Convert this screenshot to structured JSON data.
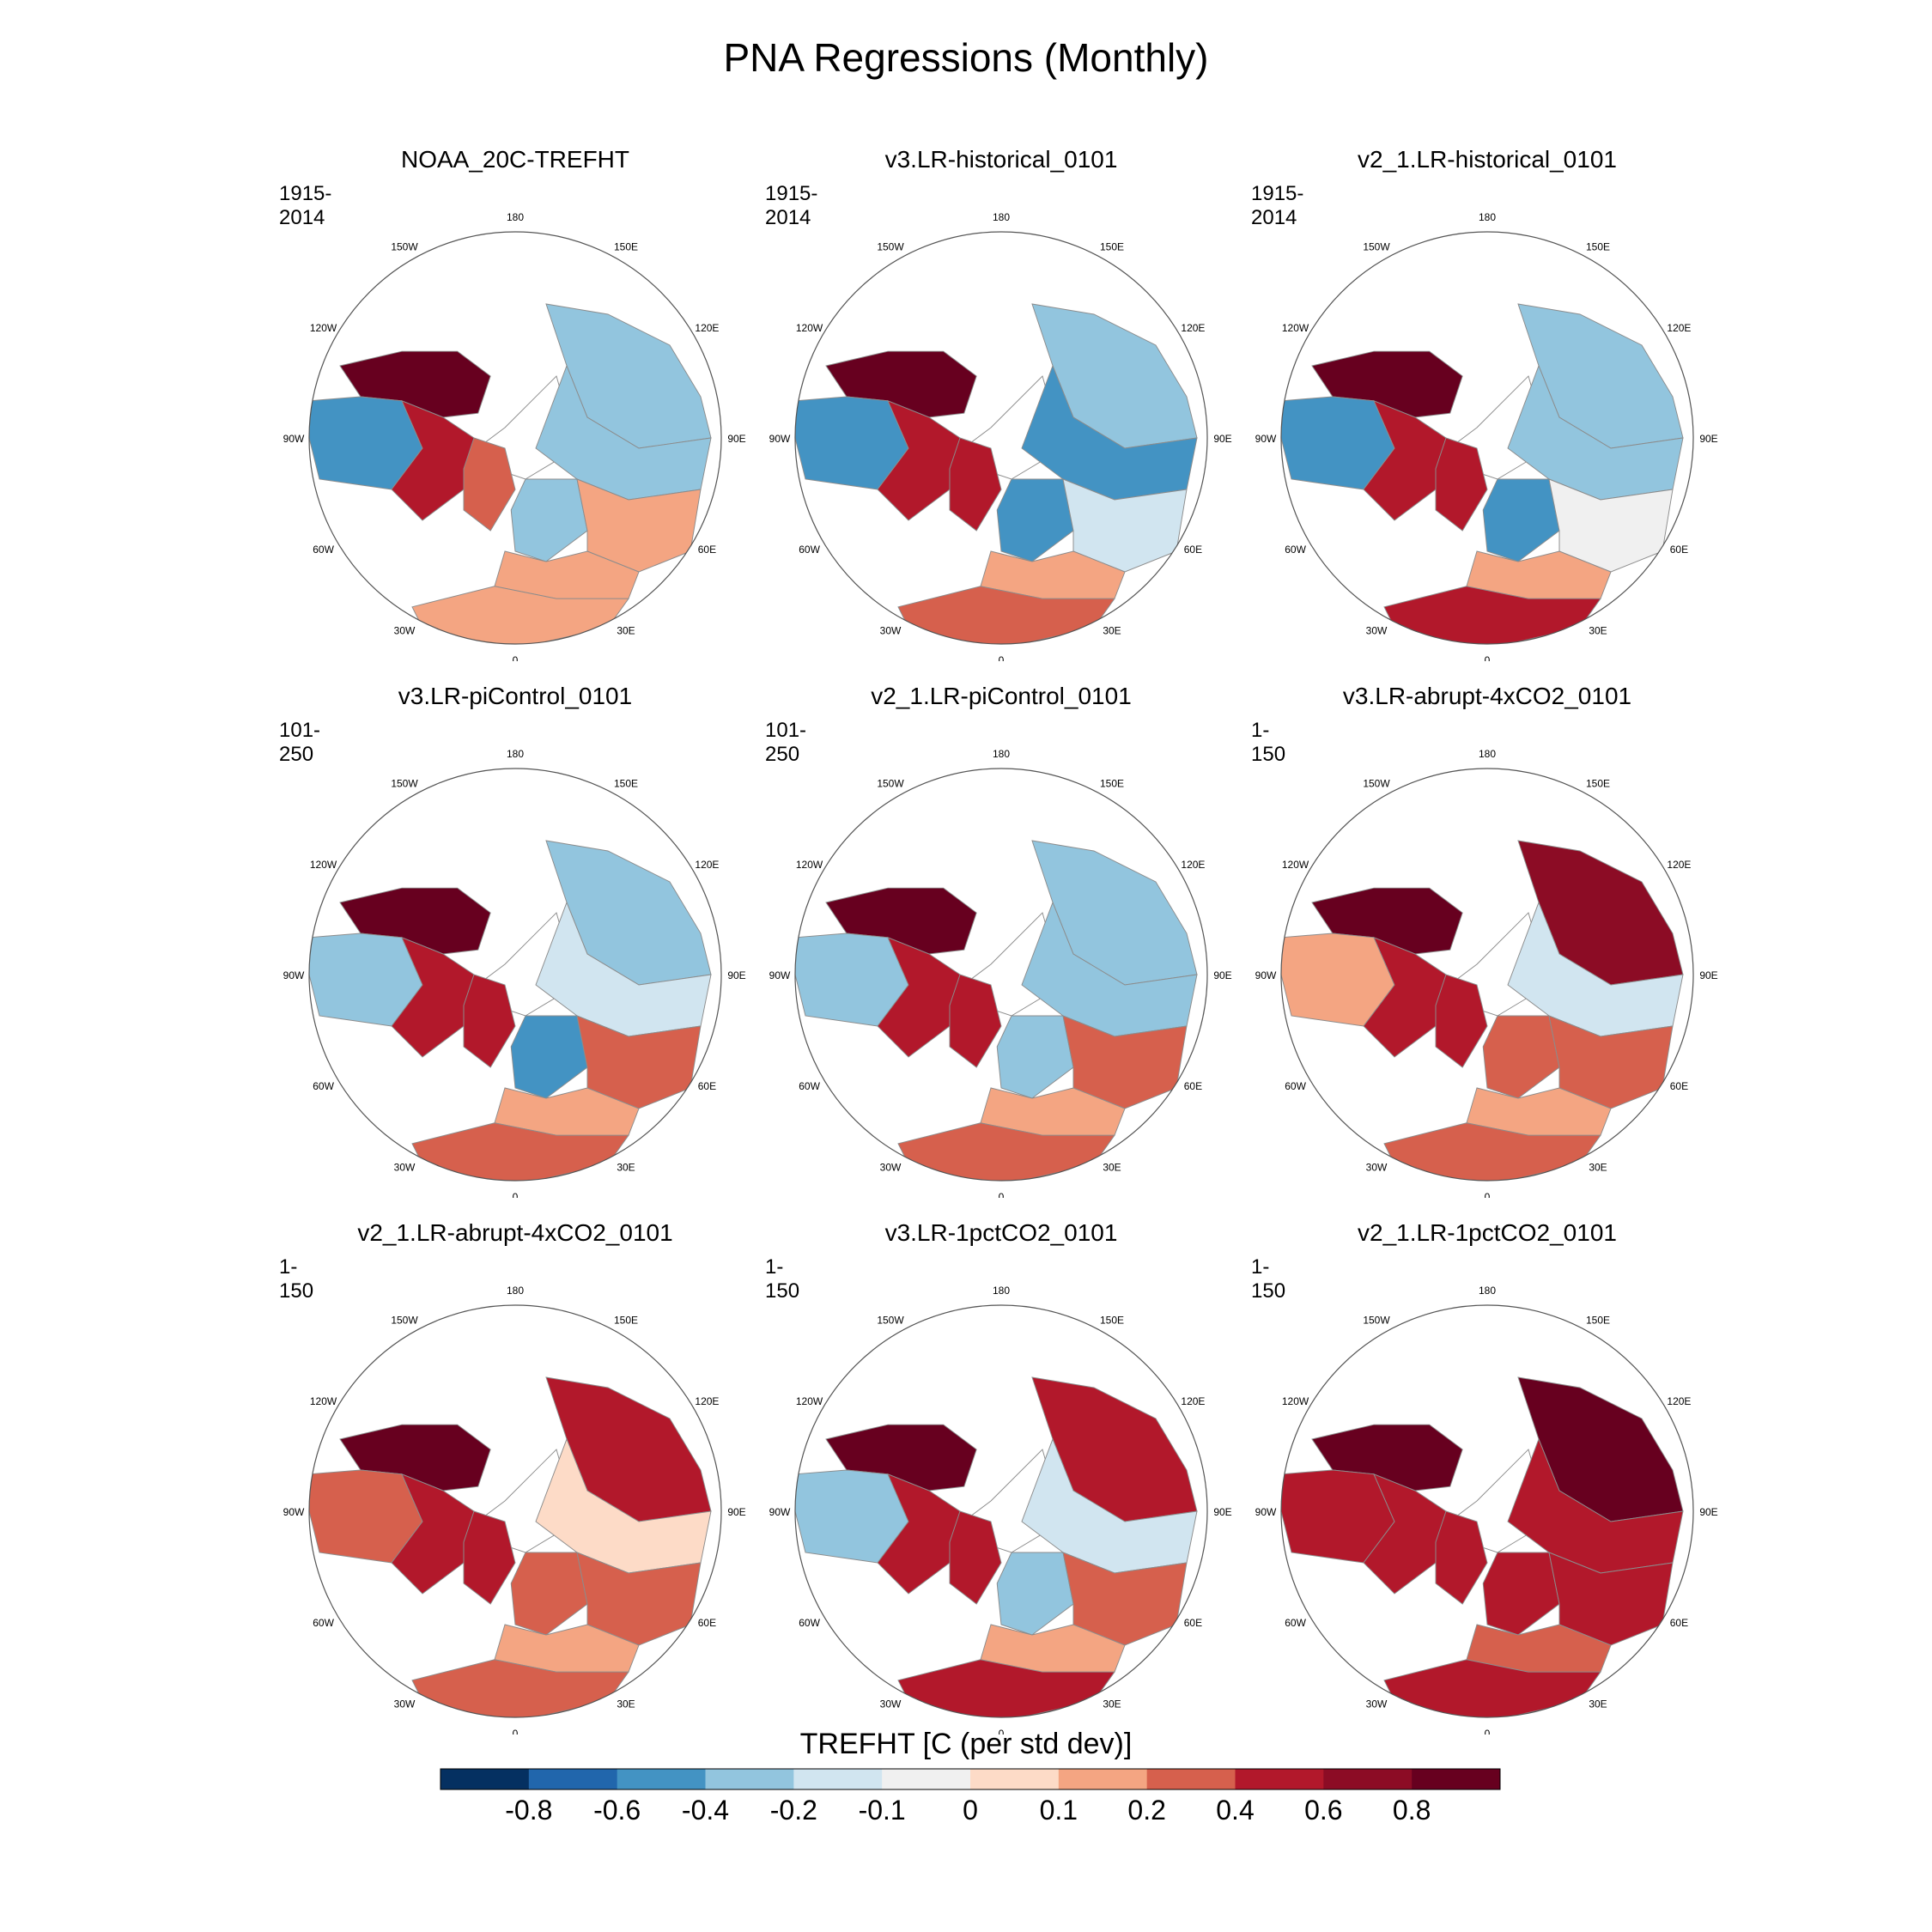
{
  "chart_data": {
    "type": "heatmap",
    "title": "PNA Regressions (Monthly)",
    "projection": "North polar stereographic",
    "variable": "TREFHT",
    "colorbar": {
      "title": "TREFHT [C (per std dev)]",
      "labels": [
        "-0.8",
        "-0.6",
        "-0.4",
        "-0.2",
        "-0.1",
        "0",
        "0.1",
        "0.2",
        "0.4",
        "0.6",
        "0.8"
      ],
      "levels": [
        -0.8,
        -0.6,
        -0.4,
        -0.2,
        -0.1,
        0,
        0.1,
        0.2,
        0.4,
        0.6,
        0.8
      ],
      "colors": [
        "#053061",
        "#2166ac",
        "#4393c3",
        "#92c5de",
        "#d1e5f0",
        "#f0f0f0",
        "#fddbc7",
        "#f4a582",
        "#d6604d",
        "#b2182b",
        "#8c0c25",
        "#67001f"
      ]
    },
    "lon_labels": [
      "180",
      "150E",
      "120E",
      "90E",
      "60E",
      "30E",
      "0",
      "30W",
      "60W",
      "90W",
      "120W",
      "150W"
    ],
    "panels": [
      {
        "title": "NOAA_20C-TREFHT",
        "period": "1915-2014",
        "regions": {
          "alaska": 0.9,
          "canada_west": -0.45,
          "canada_east": 0.4,
          "greenland": 0.3,
          "siberia_east": -0.35,
          "siberia_west": -0.3,
          "scandinavia": -0.3,
          "russia": 0.15,
          "europe_south": 0.1,
          "africa_north": 0.1,
          "arctic_ocean": 0.0
        }
      },
      {
        "title": "v3.LR-historical_0101",
        "period": "1915-2014",
        "regions": {
          "alaska": 0.9,
          "canada_west": -0.45,
          "canada_east": 0.5,
          "greenland": 0.4,
          "siberia_east": -0.4,
          "siberia_west": -0.45,
          "scandinavia": -0.55,
          "russia": -0.2,
          "europe_south": 0.1,
          "africa_north": 0.35,
          "arctic_ocean": 0.0
        }
      },
      {
        "title": "v2_1.LR-historical_0101",
        "period": "1915-2014",
        "regions": {
          "alaska": 0.9,
          "canada_west": -0.5,
          "canada_east": 0.55,
          "greenland": 0.55,
          "siberia_east": -0.3,
          "siberia_west": -0.35,
          "scandinavia": -0.45,
          "russia": -0.1,
          "europe_south": 0.1,
          "africa_north": 0.4,
          "arctic_ocean": 0.0
        }
      },
      {
        "title": "v3.LR-piControl_0101",
        "period": "101-250",
        "regions": {
          "alaska": 0.9,
          "canada_west": -0.35,
          "canada_east": 0.45,
          "greenland": 0.4,
          "siberia_east": -0.3,
          "siberia_west": -0.2,
          "scandinavia": -0.45,
          "russia": 0.2,
          "europe_south": 0.15,
          "africa_north": 0.35,
          "arctic_ocean": 0.0
        }
      },
      {
        "title": "v2_1.LR-piControl_0101",
        "period": "101-250",
        "regions": {
          "alaska": 0.85,
          "canada_west": -0.4,
          "canada_east": 0.45,
          "greenland": 0.4,
          "siberia_east": -0.3,
          "siberia_west": -0.35,
          "scandinavia": -0.4,
          "russia": 0.2,
          "europe_south": 0.1,
          "africa_north": 0.35,
          "arctic_ocean": 0.0
        }
      },
      {
        "title": "v3.LR-abrupt-4xCO2_0101",
        "period": "1-150",
        "regions": {
          "alaska": 0.9,
          "canada_west": 0.15,
          "canada_east": 0.45,
          "greenland": 0.45,
          "siberia_east": 0.6,
          "siberia_west": -0.15,
          "scandinavia": 0.3,
          "russia": 0.35,
          "europe_south": 0.1,
          "africa_north": 0.35,
          "arctic_ocean": 0.0
        }
      },
      {
        "title": "v2_1.LR-abrupt-4xCO2_0101",
        "period": "1-150",
        "regions": {
          "alaska": 0.9,
          "canada_west": 0.2,
          "canada_east": 0.45,
          "greenland": 0.45,
          "siberia_east": 0.45,
          "siberia_west": 0.0,
          "scandinavia": 0.35,
          "russia": 0.3,
          "europe_south": 0.1,
          "africa_north": 0.35,
          "arctic_ocean": 0.0
        }
      },
      {
        "title": "v3.LR-1pctCO2_0101",
        "period": "1-150",
        "regions": {
          "alaska": 0.9,
          "canada_west": -0.35,
          "canada_east": 0.45,
          "greenland": 0.4,
          "siberia_east": 0.45,
          "siberia_west": -0.2,
          "scandinavia": -0.35,
          "russia": 0.3,
          "europe_south": 0.1,
          "africa_north": 0.4,
          "arctic_ocean": 0.0
        }
      },
      {
        "title": "v2_1.LR-1pctCO2_0101",
        "period": "1-150",
        "regions": {
          "alaska": 0.95,
          "canada_west": 0.45,
          "canada_east": 0.55,
          "greenland": 0.5,
          "siberia_east": 0.9,
          "siberia_west": 0.45,
          "scandinavia": 0.45,
          "russia": 0.5,
          "europe_south": 0.25,
          "africa_north": 0.5,
          "arctic_ocean": 0.0
        }
      }
    ]
  }
}
